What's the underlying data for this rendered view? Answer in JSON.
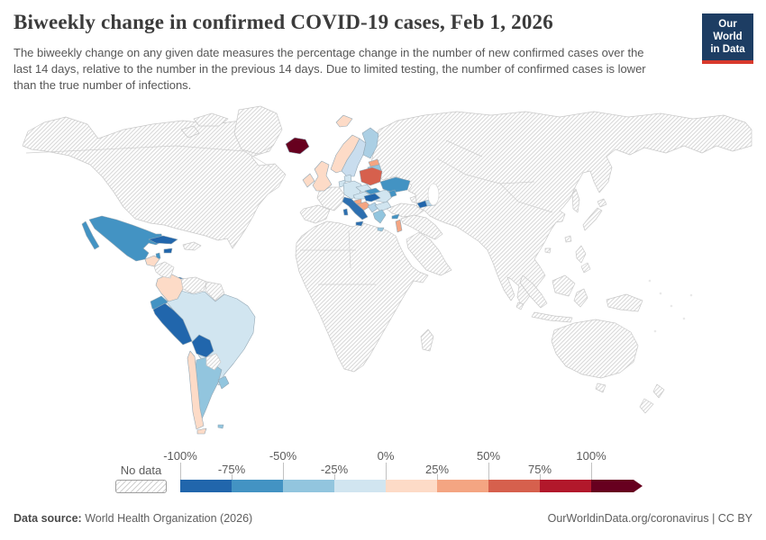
{
  "header": {
    "title": "Biweekly change in confirmed COVID-19 cases, Feb 1, 2026",
    "subtitle": "The biweekly change on any given date measures the percentage change in the number of new confirmed cases over the last 14 days, relative to the number in the previous 14 days. Due to limited testing, the number of confirmed cases is lower than the true number of infections.",
    "logo": {
      "line1": "Our World",
      "line2": "in Data",
      "bg": "#1d3d63",
      "accent": "#d8392c"
    }
  },
  "legend": {
    "no_data_label": "No data",
    "tick_labels": [
      "-100%",
      "-75%",
      "-50%",
      "-25%",
      "0%",
      "25%",
      "50%",
      "75%",
      "100%"
    ],
    "segment_colors": [
      "#2166ac",
      "#4393c3",
      "#92c5de",
      "#d1e5f0",
      "#fddbc7",
      "#f4a582",
      "#d6604d",
      "#b2182b"
    ],
    "arrow_color": "#67001f"
  },
  "map": {
    "ocean": "#ffffff",
    "hatch_line": "#d8d8d8",
    "no_data_border": "#c9c9c9",
    "country_border": "#93a7b4",
    "countries": [
      {
        "id": "mexico",
        "color": "#4393c3"
      },
      {
        "id": "belize",
        "color": "#4393c3"
      },
      {
        "id": "guatemala",
        "color": "#fddbc7"
      },
      {
        "id": "costa-rica",
        "color": "#2166ac"
      },
      {
        "id": "panama",
        "color": "#2166ac"
      },
      {
        "id": "cuba",
        "color": "#2166ac"
      },
      {
        "id": "jamaica",
        "color": "#2166ac"
      },
      {
        "id": "colombia",
        "color": "#fddbc7"
      },
      {
        "id": "ecuador",
        "color": "#4393c3"
      },
      {
        "id": "peru",
        "color": "#2166ac"
      },
      {
        "id": "bolivia",
        "color": "#2166ac"
      },
      {
        "id": "brazil",
        "color": "#d1e5f0"
      },
      {
        "id": "argentina",
        "color": "#92c5de"
      },
      {
        "id": "uruguay",
        "color": "#92c5de"
      },
      {
        "id": "chile",
        "color": "#fddbc7"
      },
      {
        "id": "falkland-islands",
        "color": "#92c5de"
      },
      {
        "id": "iceland",
        "color": "#67001f"
      },
      {
        "id": "norway",
        "color": "#fddbc7"
      },
      {
        "id": "svalbard",
        "color": "#fddbc7"
      },
      {
        "id": "sweden",
        "color": "#c9ddee"
      },
      {
        "id": "finland",
        "color": "#abcfe4"
      },
      {
        "id": "estonia",
        "color": "#f4a582"
      },
      {
        "id": "latvia",
        "color": "#92c5de"
      },
      {
        "id": "lithuania",
        "color": "#92c5de"
      },
      {
        "id": "kaliningrad",
        "color": "#4393c3"
      },
      {
        "id": "united-kingdom",
        "color": "#fddbc7"
      },
      {
        "id": "ireland",
        "color": "#fddbc7"
      },
      {
        "id": "denmark",
        "color": "#d1e5f0"
      },
      {
        "id": "germany",
        "color": "#d1e5f0"
      },
      {
        "id": "benelux",
        "color": "#d1e5f0"
      },
      {
        "id": "poland",
        "color": "#d6604d"
      },
      {
        "id": "czechia",
        "color": "#d1e5f0"
      },
      {
        "id": "austria",
        "color": "#d1e5f0"
      },
      {
        "id": "slovakia",
        "color": "#4393c3"
      },
      {
        "id": "hungary",
        "color": "#2166ac"
      },
      {
        "id": "italy",
        "color": "#2d6fb0"
      },
      {
        "id": "slovenia",
        "color": "#f4a582"
      },
      {
        "id": "croatia",
        "color": "#f4a582"
      },
      {
        "id": "serbia",
        "color": "#b3d3e8"
      },
      {
        "id": "romania",
        "color": "#d1e5f0"
      },
      {
        "id": "bulgaria",
        "color": "#d1e5f0"
      },
      {
        "id": "greece",
        "color": "#92c5de"
      },
      {
        "id": "ukraine",
        "color": "#4393c3"
      },
      {
        "id": "moldova",
        "color": "#4393c3"
      },
      {
        "id": "armenia",
        "color": "#2166ac"
      },
      {
        "id": "azerbaijan",
        "color": "#b3d3e8"
      },
      {
        "id": "cyprus",
        "color": "#4393c3"
      },
      {
        "id": "israel",
        "color": "#f4a582"
      }
    ]
  },
  "footer": {
    "source_label": "Data source:",
    "source_text": " World Health Organization (2026)",
    "credit": "OurWorldinData.org/coronavirus | CC BY"
  }
}
